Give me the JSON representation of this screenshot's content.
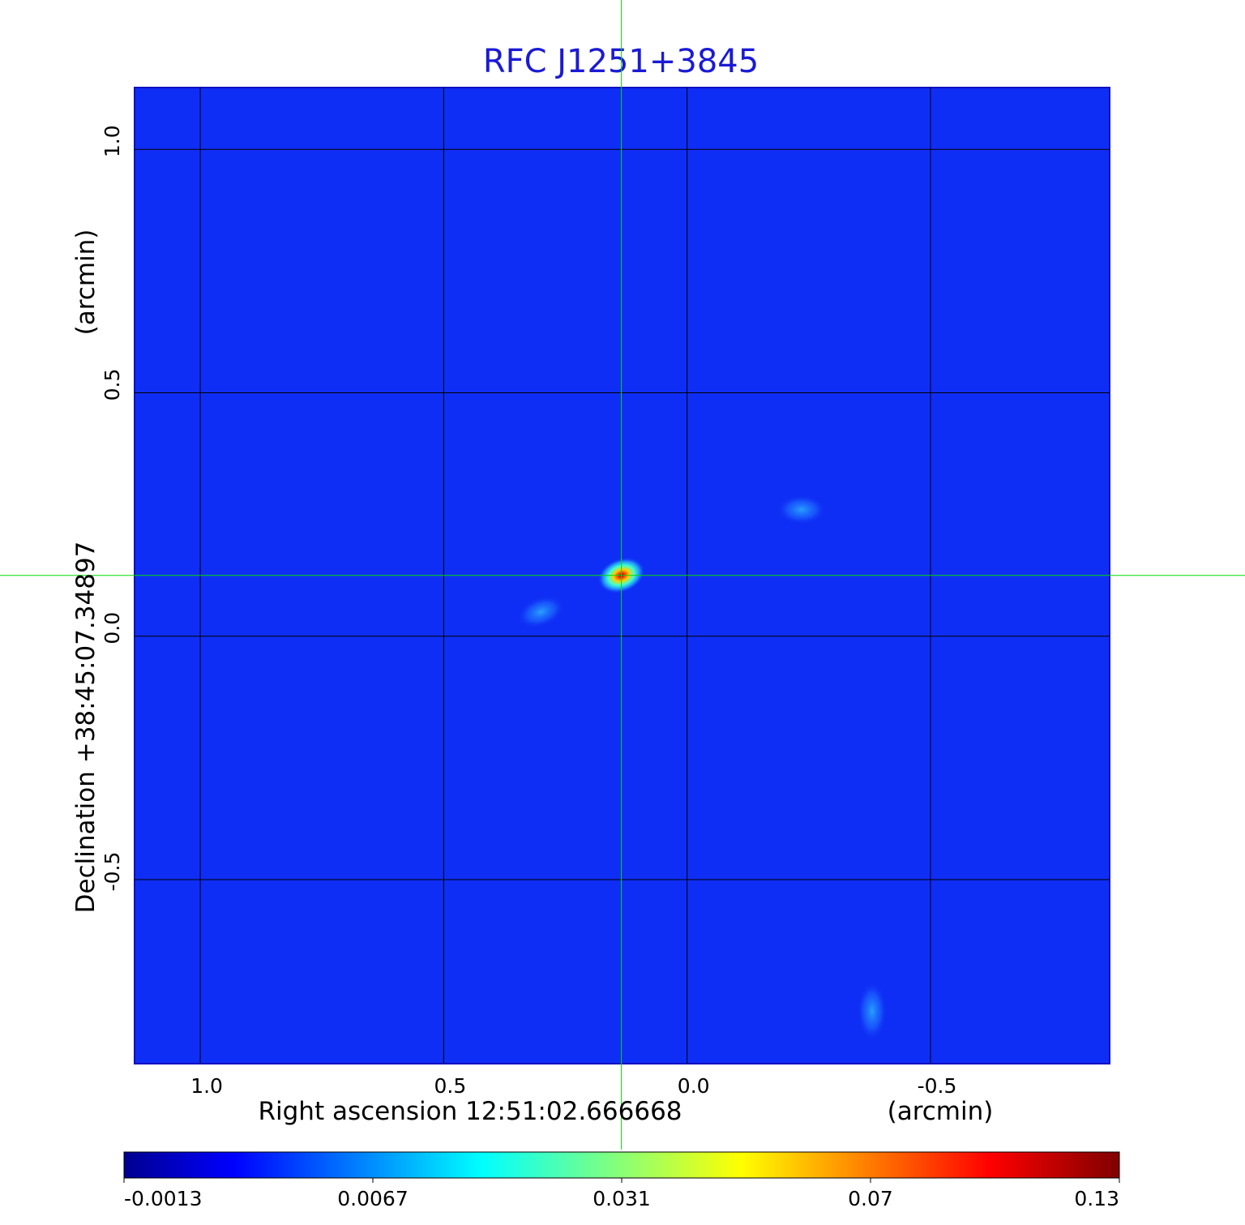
{
  "chart_data": {
    "type": "heatmap",
    "title": "RFC J1251+3845",
    "xlabel": "Right ascension  12:51:02.666668",
    "xunit": "(arcmin)",
    "ylabel": "Declination  +38:45:07.34897",
    "yunit": "(arcmin)",
    "x_ticks": [
      "1.0",
      "0.5",
      "0.0",
      "-0.5"
    ],
    "x_tick_values": [
      1.0,
      0.5,
      0.0,
      -0.5
    ],
    "y_ticks": [
      "1.0",
      "0.5",
      "0.0",
      "-0.5"
    ],
    "y_tick_values": [
      1.0,
      0.5,
      0.0,
      -0.5
    ],
    "xlim": [
      1.135,
      -0.868
    ],
    "ylim": [
      -0.878,
      1.127
    ],
    "grid": true,
    "colormap": "jet",
    "colorbar": {
      "ticks": [
        "-0.0013",
        "0.0067",
        "0.031",
        "0.07",
        "0.13"
      ],
      "tick_values": [
        -0.0013,
        0.0067,
        0.031,
        0.07,
        0.13
      ]
    },
    "crosshair": {
      "x": 0.135,
      "y": 0.125,
      "color": "#00dd00"
    },
    "sources": [
      {
        "x": 0.135,
        "y": 0.125,
        "peak": 0.13,
        "sx": 0.05,
        "sy": 0.035,
        "angle": -20
      },
      {
        "x": -0.38,
        "y": -0.77,
        "peak": 0.011,
        "sx": 0.03,
        "sy": 0.06,
        "angle": 0
      },
      {
        "x": -0.235,
        "y": 0.26,
        "peak": 0.006,
        "sx": 0.05,
        "sy": 0.03,
        "angle": 0
      },
      {
        "x": 0.3,
        "y": 0.05,
        "peak": 0.005,
        "sx": 0.05,
        "sy": 0.03,
        "angle": -20
      }
    ],
    "background_color": "#0f2ef5"
  }
}
